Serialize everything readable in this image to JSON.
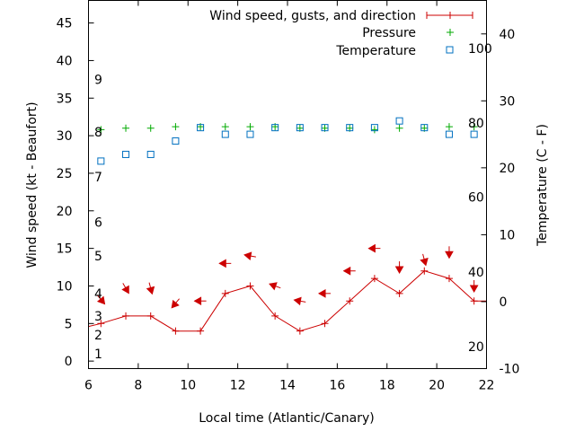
{
  "colors": {
    "wind": "#cc0000",
    "pressure": "#00aa00",
    "temperature": "#0070c0",
    "axis": "#000000"
  },
  "chart_data": {
    "type": "line",
    "xlabel": "Local time (Atlantic/Canary)",
    "ylabel": "Wind speed (kt - Beaufort)",
    "y2label": "Temperature (C - F)",
    "xlim": [
      6,
      22
    ],
    "ylim": [
      -1,
      48
    ],
    "y2lim": [
      -10,
      45
    ],
    "x_ticks": [
      6,
      8,
      10,
      12,
      14,
      16,
      18,
      20,
      22
    ],
    "y_ticks": [
      0,
      5,
      10,
      15,
      20,
      25,
      30,
      35,
      40,
      45
    ],
    "y2_ticks": [
      -10,
      0,
      10,
      20,
      30,
      40
    ],
    "beaufort_labels": [
      {
        "label": "1",
        "kt": 1
      },
      {
        "label": "2",
        "kt": 3.5
      },
      {
        "label": "3",
        "kt": 6
      },
      {
        "label": "4",
        "kt": 9
      },
      {
        "label": "5",
        "kt": 14
      },
      {
        "label": "6",
        "kt": 18.5
      },
      {
        "label": "7",
        "kt": 24.5
      },
      {
        "label": "8",
        "kt": 30.5
      },
      {
        "label": "9",
        "kt": 37.5
      }
    ],
    "fahrenheit_labels": [
      {
        "label": "20",
        "celsius": -6.7
      },
      {
        "label": "40",
        "celsius": 4.4
      },
      {
        "label": "60",
        "celsius": 15.6
      },
      {
        "label": "80",
        "celsius": 26.7
      },
      {
        "label": "100",
        "celsius": 37.8
      }
    ],
    "legend": {
      "position": "top-right",
      "entries": [
        "Wind speed, gusts, and direction",
        "Pressure",
        "Temperature"
      ]
    },
    "series": [
      {
        "name": "Wind speed, gusts, and direction",
        "axis": "left",
        "x": [
          6,
          6.5,
          7.5,
          8.5,
          9.5,
          10.5,
          11.5,
          12.5,
          13.5,
          14.5,
          15.5,
          16.5,
          17.5,
          18.5,
          19.5,
          20.5,
          21.5,
          22
        ],
        "y": [
          4.6,
          5,
          6,
          6,
          4,
          4,
          9,
          10,
          6,
          4,
          5,
          8,
          11,
          9,
          12,
          11,
          8,
          8
        ]
      },
      {
        "name": "Pressure",
        "axis": "left",
        "x": [
          6.5,
          7.5,
          8.5,
          9.5,
          10.5,
          11.5,
          12.5,
          13.5,
          14.5,
          15.5,
          16.5,
          17.5,
          18.5,
          19.5,
          20.5,
          21.5
        ],
        "y": [
          30.8,
          31,
          31,
          31.2,
          31.2,
          31.2,
          31.2,
          31.2,
          31,
          31,
          31,
          30.8,
          31,
          31,
          31.2,
          31.2
        ]
      },
      {
        "name": "Temperature",
        "axis": "right",
        "x": [
          6.5,
          7.5,
          8.5,
          9.5,
          10.5,
          11.5,
          12.5,
          13.5,
          14.5,
          15.5,
          16.5,
          17.5,
          18.5,
          19.5,
          20.5,
          21.5
        ],
        "y": [
          21,
          22,
          22,
          24,
          26,
          25,
          25,
          26,
          26,
          26,
          26,
          26,
          27,
          26,
          25,
          25
        ]
      },
      {
        "name": "Wind direction (arrow heading, degrees)",
        "axis": "left",
        "x": [
          6.5,
          7.5,
          8.5,
          9.5,
          10.5,
          11.5,
          12.5,
          13.5,
          14.5,
          15.5,
          16.5,
          17.5,
          18.5,
          19.5,
          20.5,
          21.5
        ],
        "y": [
          8.2,
          9.7,
          9.7,
          7.7,
          8,
          13,
          14,
          10,
          8,
          9,
          12,
          15,
          12.5,
          13.5,
          14.5,
          10
        ],
        "direction": [
          140,
          150,
          165,
          220,
          270,
          270,
          280,
          290,
          280,
          270,
          270,
          270,
          180,
          165,
          180,
          180
        ]
      }
    ]
  }
}
